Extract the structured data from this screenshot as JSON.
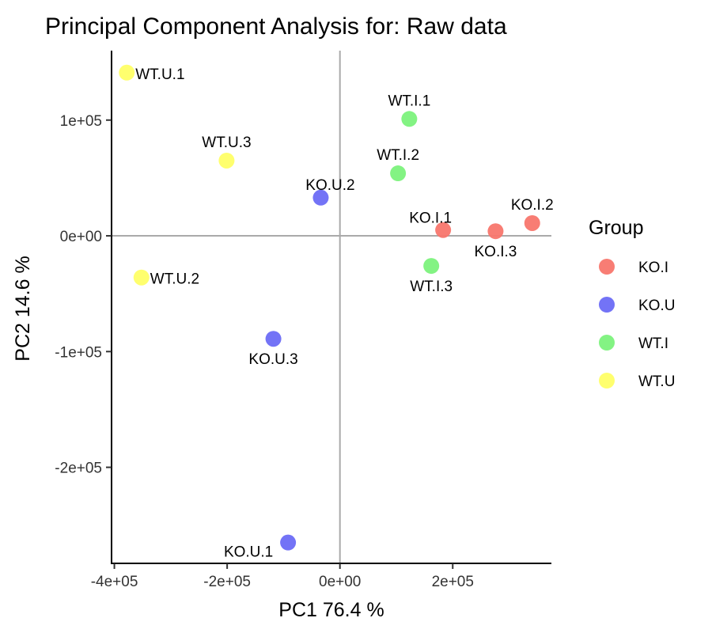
{
  "chart_data": {
    "type": "scatter",
    "title": "Principal Component Analysis for:  Raw data",
    "xlabel": "PC1 76.4 %",
    "ylabel": "PC2 14.6 %",
    "xlim": [
      -405000,
      375000
    ],
    "ylim": [
      -283000,
      160000
    ],
    "xticks": [
      {
        "value": -400000,
        "label": "-4e+05"
      },
      {
        "value": -200000,
        "label": "-2e+05"
      },
      {
        "value": 0,
        "label": "0e+00"
      },
      {
        "value": 200000,
        "label": "2e+05"
      }
    ],
    "yticks": [
      {
        "value": 100000,
        "label": "1e+05"
      },
      {
        "value": 0,
        "label": "0e+00"
      },
      {
        "value": -100000,
        "label": "-1e+05"
      },
      {
        "value": -200000,
        "label": "-2e+05"
      }
    ],
    "reference_lines": {
      "x": 0,
      "y": 0,
      "color": "#aaaaaa"
    },
    "grid": false,
    "legend": {
      "title": "Group",
      "position": "right",
      "entries": [
        {
          "label": "KO.I",
          "color": "#f8766d"
        },
        {
          "label": "KO.U",
          "color": "#6b6bf5"
        },
        {
          "label": "WT.I",
          "color": "#7cf27c"
        },
        {
          "label": "WT.U",
          "color": "#ffff66"
        }
      ]
    },
    "points": [
      {
        "label": "WT.U.1",
        "group": "WT.U",
        "x": -378000,
        "y": 141000,
        "label_pos": "right"
      },
      {
        "label": "WT.U.3",
        "group": "WT.U",
        "x": -201000,
        "y": 65000,
        "label_pos": "above"
      },
      {
        "label": "WT.U.2",
        "group": "WT.U",
        "x": -352000,
        "y": -36000,
        "label_pos": "right"
      },
      {
        "label": "WT.I.1",
        "group": "WT.I",
        "x": 123000,
        "y": 101000,
        "label_pos": "above"
      },
      {
        "label": "WT.I.2",
        "group": "WT.I",
        "x": 103000,
        "y": 54000,
        "label_pos": "above"
      },
      {
        "label": "WT.I.3",
        "group": "WT.I",
        "x": 162000,
        "y": -26000,
        "label_pos": "below"
      },
      {
        "label": "KO.U.2",
        "group": "KO.U",
        "x": -34000,
        "y": 33000,
        "label_pos": "above-right"
      },
      {
        "label": "KO.U.3",
        "group": "KO.U",
        "x": -118000,
        "y": -89000,
        "label_pos": "below"
      },
      {
        "label": "KO.U.1",
        "group": "KO.U",
        "x": -92000,
        "y": -265000,
        "label_pos": "below-left"
      },
      {
        "label": "KO.I.1",
        "group": "KO.I",
        "x": 183000,
        "y": 5000,
        "label_pos": "above-left"
      },
      {
        "label": "KO.I.3",
        "group": "KO.I",
        "x": 276000,
        "y": 4000,
        "label_pos": "below"
      },
      {
        "label": "KO.I.2",
        "group": "KO.I",
        "x": 341000,
        "y": 11000,
        "label_pos": "above"
      }
    ]
  }
}
